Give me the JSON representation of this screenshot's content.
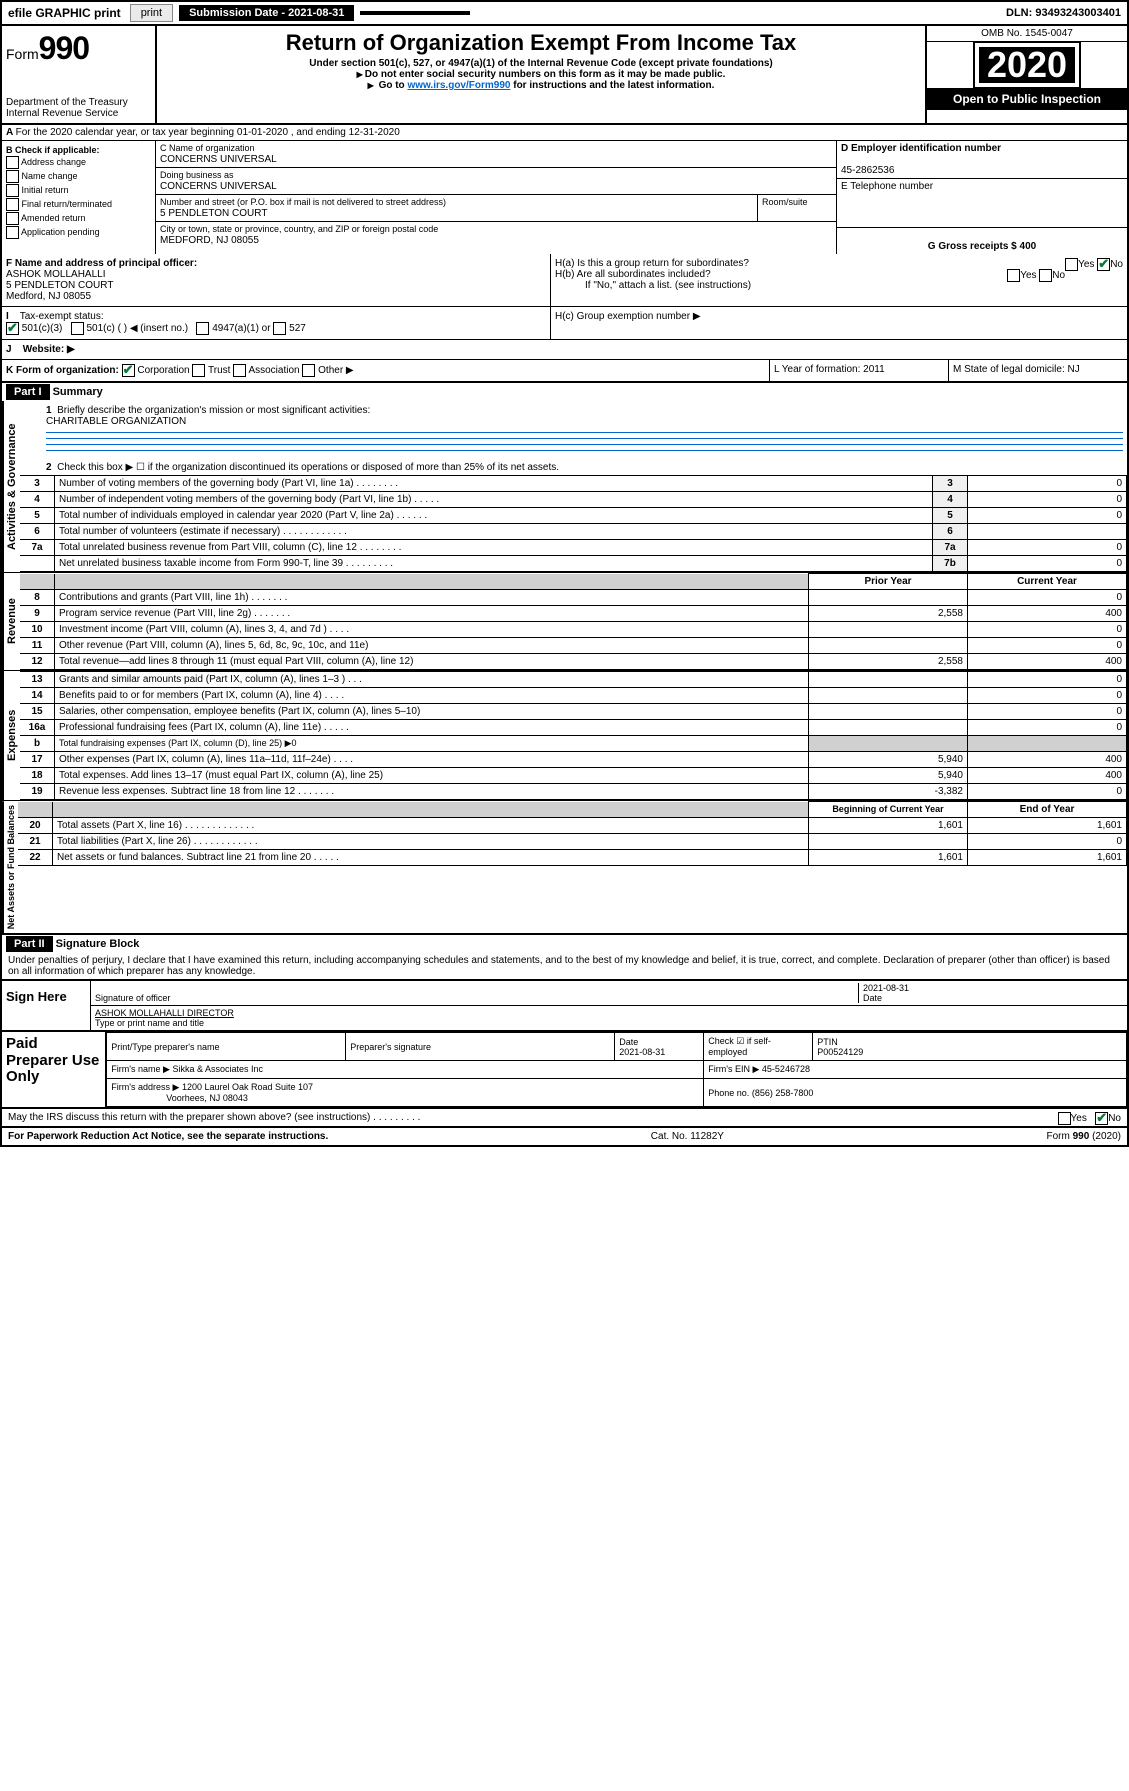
{
  "topbar": {
    "efile_label": "efile GRAPHIC print",
    "submission_label": "Submission Date - 2021-08-31",
    "dln": "DLN: 93493243003401"
  },
  "header": {
    "form_prefix": "Form",
    "form_number": "990",
    "dept": "Department of the Treasury",
    "irs": "Internal Revenue Service",
    "title": "Return of Organization Exempt From Income Tax",
    "subtitle1": "Under section 501(c), 527, or 4947(a)(1) of the Internal Revenue Code (except private foundations)",
    "subtitle2": "Do not enter social security numbers on this form as it may be made public.",
    "subtitle3_pre": "Go to ",
    "subtitle3_link": "www.irs.gov/Form990",
    "subtitle3_post": " for instructions and the latest information.",
    "omb": "OMB No. 1545-0047",
    "year": "2020",
    "open": "Open to Public Inspection"
  },
  "rowA": {
    "text": "For the 2020 calendar year, or tax year beginning 01-01-2020     , and ending 12-31-2020"
  },
  "boxB": {
    "head": "B Check if applicable:",
    "addr": "Address change",
    "name": "Name change",
    "init": "Initial return",
    "final": "Final return/terminated",
    "amend": "Amended return",
    "app": "Application pending"
  },
  "boxC": {
    "name_label": "C Name of organization",
    "name": "CONCERNS UNIVERSAL",
    "dba_label": "Doing business as",
    "dba": "CONCERNS UNIVERSAL",
    "addr_label": "Number and street (or P.O. box if mail is not delivered to street address)",
    "room_label": "Room/suite",
    "addr": "5 PENDLETON COURT",
    "city_label": "City or town, state or province, country, and ZIP or foreign postal code",
    "city": "MEDFORD, NJ  08055"
  },
  "boxD": {
    "ein_label": "D Employer identification number",
    "ein": "45-2862536",
    "tel_label": "E Telephone number",
    "gross_label": "G Gross receipts $ 400"
  },
  "boxF": {
    "label": "F  Name and address of principal officer:",
    "name": "ASHOK MOLLAHALLI",
    "addr1": "5 PENDLETON COURT",
    "addr2": "Medford, NJ  08055"
  },
  "boxH": {
    "ha": "H(a)  Is this a group return for subordinates?",
    "hb": "H(b)  Are all subordinates included?",
    "hb_note": "If \"No,\" attach a list. (see instructions)",
    "hc": "H(c)  Group exemption number ▶",
    "yes": "Yes",
    "no": "No"
  },
  "rowI": {
    "label": "Tax-exempt status:",
    "c3": "501(c)(3)",
    "c": "501(c) (   ) ◀ (insert no.)",
    "a1": "4947(a)(1) or",
    "s527": "527"
  },
  "rowJ": {
    "label": "Website: ▶"
  },
  "rowK": {
    "label": "K Form of organization:",
    "corp": "Corporation",
    "trust": "Trust",
    "assoc": "Association",
    "other": "Other ▶"
  },
  "rowL": {
    "label": "L Year of formation: 2011"
  },
  "rowM": {
    "label": "M State of legal domicile: NJ"
  },
  "part1": {
    "hdr": "Part I",
    "title": "Summary",
    "vlabel1": "Activities & Governance",
    "vlabel2": "Revenue",
    "vlabel3": "Expenses",
    "vlabel4": "Net Assets or Fund Balances",
    "l1": "Briefly describe the organization's mission or most significant activities:",
    "l1v": "CHARITABLE ORGANIZATION",
    "l2": "Check this box ▶ ☐  if the organization discontinued its operations or disposed of more than 25% of its net assets.",
    "rows_gov": [
      {
        "n": "3",
        "d": "Number of voting members of the governing body (Part VI, line 1a)  .   .   .   .   .   .   .   .",
        "b": "3",
        "v": "0"
      },
      {
        "n": "4",
        "d": "Number of independent voting members of the governing body (Part VI, line 1b)   .   .   .   .   .",
        "b": "4",
        "v": "0"
      },
      {
        "n": "5",
        "d": "Total number of individuals employed in calendar year 2020 (Part V, line 2a)  .   .   .   .   .   .",
        "b": "5",
        "v": "0"
      },
      {
        "n": "6",
        "d": "Total number of volunteers (estimate if necessary)    .   .   .   .   .   .   .   .   .   .   .   .",
        "b": "6",
        "v": ""
      },
      {
        "n": "7a",
        "d": "Total unrelated business revenue from Part VIII, column (C), line 12   .   .   .   .   .   .   .   .",
        "b": "7a",
        "v": "0"
      },
      {
        "n": "",
        "d": "Net unrelated business taxable income from Form 990-T, line 39   .   .   .   .   .   .   .   .   .",
        "b": "7b",
        "v": "0"
      }
    ],
    "col_prior": "Prior Year",
    "col_curr": "Current Year",
    "rows_rev": [
      {
        "n": "8",
        "d": "Contributions and grants (Part VIII, line 1h)   .   .   .   .   .   .   .",
        "p": "",
        "c": "0"
      },
      {
        "n": "9",
        "d": "Program service revenue (Part VIII, line 2g)   .   .   .   .   .   .   .",
        "p": "2,558",
        "c": "400"
      },
      {
        "n": "10",
        "d": "Investment income (Part VIII, column (A), lines 3, 4, and 7d )   .   .   .   .",
        "p": "",
        "c": "0"
      },
      {
        "n": "11",
        "d": "Other revenue (Part VIII, column (A), lines 5, 6d, 8c, 9c, 10c, and 11e)",
        "p": "",
        "c": "0"
      },
      {
        "n": "12",
        "d": "Total revenue—add lines 8 through 11 (must equal Part VIII, column (A), line 12)",
        "p": "2,558",
        "c": "400"
      }
    ],
    "rows_exp": [
      {
        "n": "13",
        "d": "Grants and similar amounts paid (Part IX, column (A), lines 1–3 )  .   .   .",
        "p": "",
        "c": "0"
      },
      {
        "n": "14",
        "d": "Benefits paid to or for members (Part IX, column (A), line 4)  .   .   .   .",
        "p": "",
        "c": "0"
      },
      {
        "n": "15",
        "d": "Salaries, other compensation, employee benefits (Part IX, column (A), lines 5–10)",
        "p": "",
        "c": "0"
      },
      {
        "n": "16a",
        "d": "Professional fundraising fees (Part IX, column (A), line 11e)  .   .   .   .   .",
        "p": "",
        "c": "0"
      },
      {
        "n": "b",
        "d": "Total fundraising expenses (Part IX, column (D), line 25) ▶0",
        "p": "shade",
        "c": "shade"
      },
      {
        "n": "17",
        "d": "Other expenses (Part IX, column (A), lines 11a–11d, 11f–24e)  .   .   .   .",
        "p": "5,940",
        "c": "400"
      },
      {
        "n": "18",
        "d": "Total expenses. Add lines 13–17 (must equal Part IX, column (A), line 25)",
        "p": "5,940",
        "c": "400"
      },
      {
        "n": "19",
        "d": "Revenue less expenses. Subtract line 18 from line 12   .   .   .   .   .   .   .",
        "p": "-3,382",
        "c": "0"
      }
    ],
    "col_beg": "Beginning of Current Year",
    "col_end": "End of Year",
    "rows_net": [
      {
        "n": "20",
        "d": "Total assets (Part X, line 16)  .   .   .   .   .   .   .   .   .   .   .   .   .",
        "p": "1,601",
        "c": "1,601"
      },
      {
        "n": "21",
        "d": "Total liabilities (Part X, line 26)  .   .   .   .   .   .   .   .   .   .   .   .",
        "p": "",
        "c": "0"
      },
      {
        "n": "22",
        "d": "Net assets or fund balances. Subtract line 21 from line 20   .   .   .   .   .",
        "p": "1,601",
        "c": "1,601"
      }
    ]
  },
  "part2": {
    "hdr": "Part II",
    "title": "Signature Block",
    "decl": "Under penalties of perjury, I declare that I have examined this return, including accompanying schedules and statements, and to the best of my knowledge and belief, it is true, correct, and complete. Declaration of preparer (other than officer) is based on all information of which preparer has any knowledge."
  },
  "sign": {
    "here": "Sign Here",
    "sig_officer": "Signature of officer",
    "date": "2021-08-31",
    "date_l": "Date",
    "name": "ASHOK MOLLAHALLI  DIRECTOR",
    "name_l": "Type or print name and title"
  },
  "prep": {
    "label": "Paid Preparer Use Only",
    "h1": "Print/Type preparer's name",
    "h2": "Preparer's signature",
    "h3": "Date",
    "h3v": "2021-08-31",
    "h4": "Check ☑ if self-employed",
    "h5": "PTIN",
    "h5v": "P00524129",
    "firm_l": "Firm's name      ▶",
    "firm": "Sikka & Associates Inc",
    "ein_l": "Firm's EIN ▶",
    "ein": "45-5246728",
    "addr_l": "Firm's address ▶",
    "addr1": "1200 Laurel Oak Road Suite 107",
    "addr2": "Voorhees, NJ  08043",
    "phone_l": "Phone no.",
    "phone": "(856) 258-7800"
  },
  "discuss": {
    "text": "May the IRS discuss this return with the preparer shown above? (see instructions)    .   .   .   .   .   .   .   .   .",
    "yes": "Yes",
    "no": "No"
  },
  "footer": {
    "left": "For Paperwork Reduction Act Notice, see the separate instructions.",
    "mid": "Cat. No. 11282Y",
    "right": "Form 990 (2020)"
  }
}
